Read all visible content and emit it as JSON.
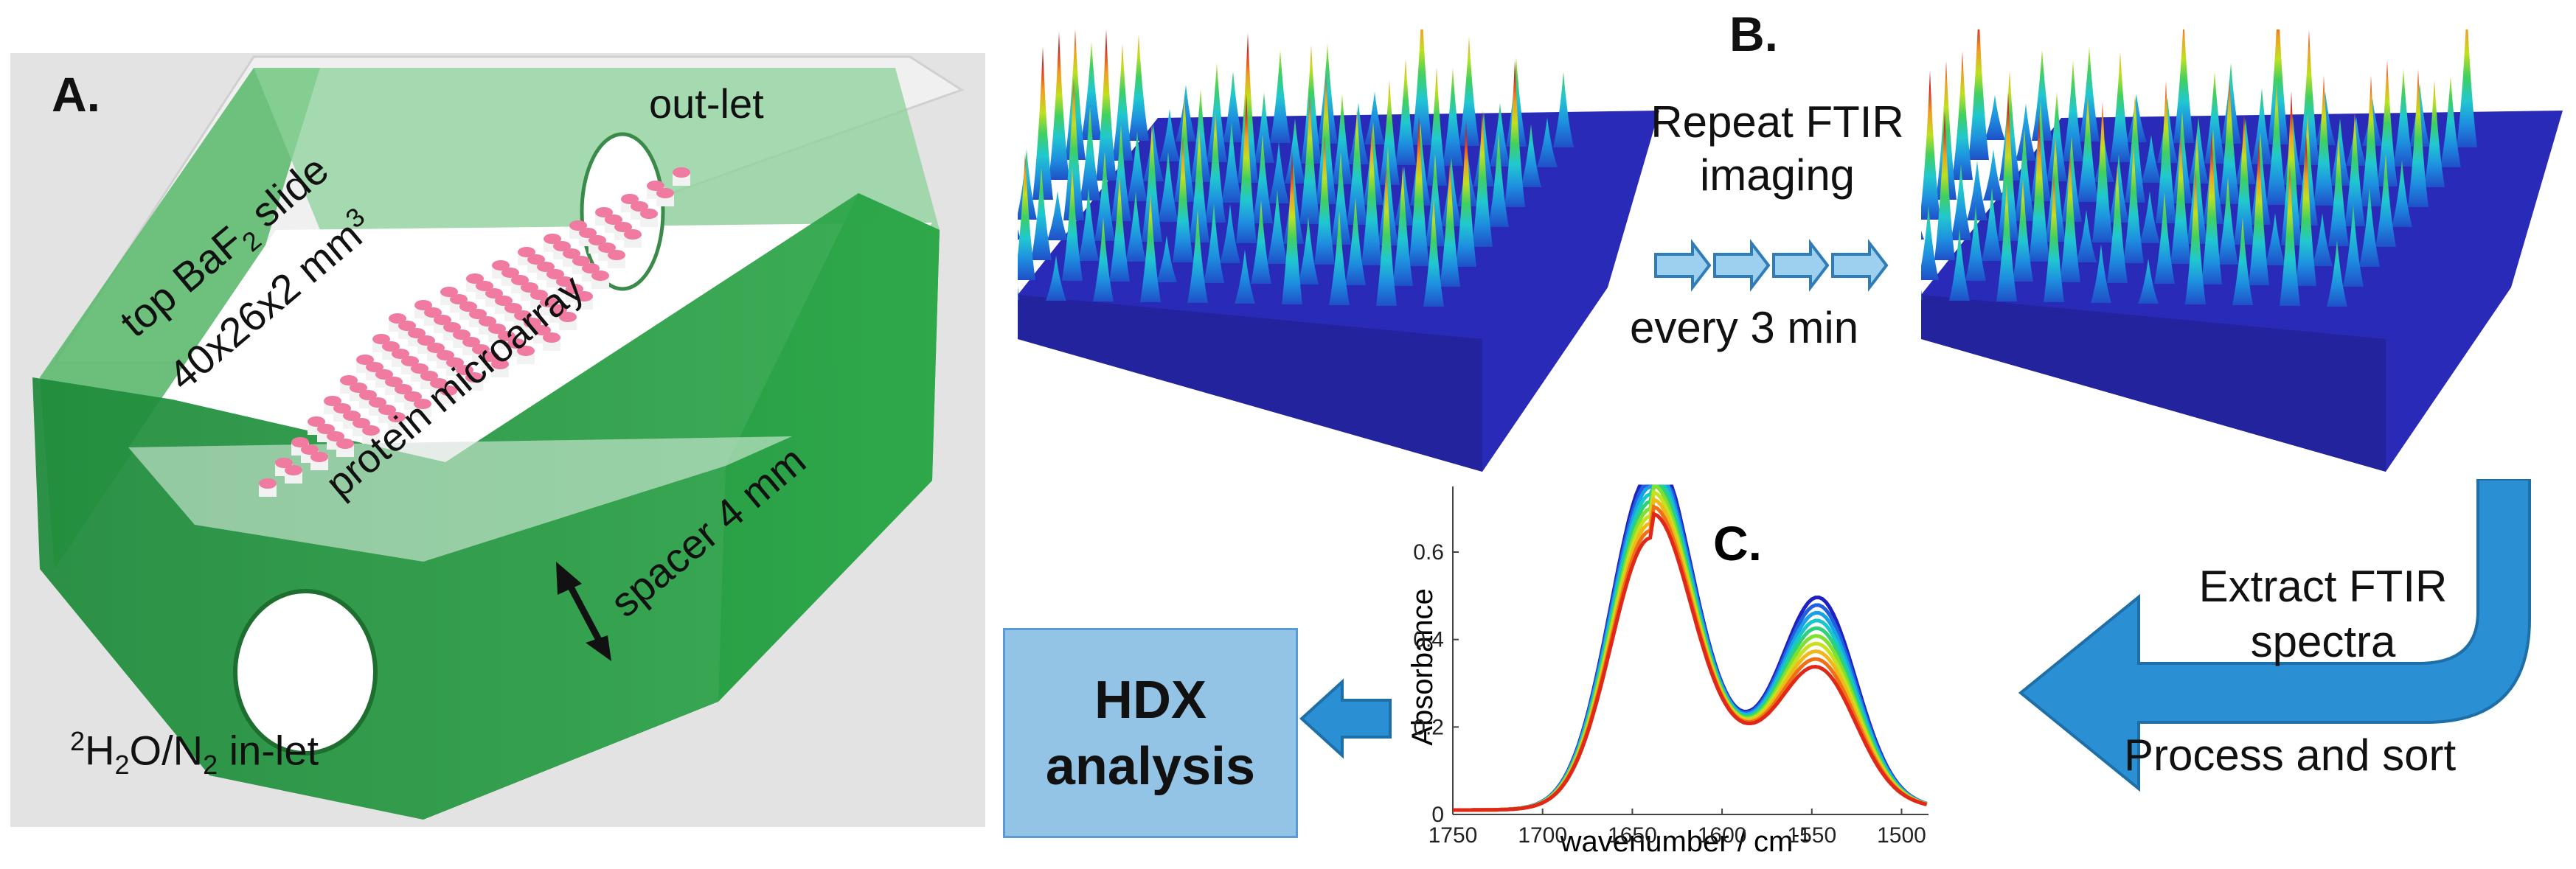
{
  "panel_a": {
    "letter": "A.",
    "outlet_label": "out-let",
    "top_slide_prefix": "top BaF",
    "top_slide_sub": "2",
    "top_slide_suffix": " slide",
    "dims_text": "40x26x2 mm",
    "dims_sup": "3",
    "microarray_label": "protein microarray",
    "spacer_label": "spacer 4 mm",
    "inlet_sup": "2",
    "inlet_mid": "H",
    "inlet_sub1": "2",
    "inlet_mid2": "O/N",
    "inlet_sub2": "2",
    "inlet_suffix": " in-let"
  },
  "panel_b": {
    "letter": "B.",
    "repeat_line1": "Repeat FTIR",
    "repeat_line2": "imaging",
    "interval": "every 3 min"
  },
  "flow": {
    "extract_line1": "Extract FTIR",
    "extract_line2": "spectra",
    "process": "Process and sort"
  },
  "hdx": {
    "line1": "HDX",
    "line2": "analysis"
  },
  "chart_data": {
    "type": "line",
    "panel_letter": "C.",
    "xlabel_prefix": "wavenumber / cm",
    "xlabel_sup": "-1",
    "ylabel": "Absorbance",
    "xlim": [
      1750,
      1485
    ],
    "ylim": [
      0,
      0.75
    ],
    "x_ticks": [
      1750,
      1700,
      1650,
      1600,
      1550,
      1500
    ],
    "y_ticks": [
      0,
      0.2,
      0.4,
      0.6
    ],
    "x_tick_labels": [
      "1750",
      "1700",
      "1650",
      "1600",
      "1550",
      "1500"
    ],
    "y_tick_labels": [
      "0",
      "0.2",
      "0.4",
      "0.6"
    ],
    "series_description": "many overlapping spectra, colour graded blue to red",
    "amide_I_peak_x": 1640,
    "amide_I_peak_range": [
      0.6,
      0.75
    ],
    "amide_II_peak_x": 1545,
    "amide_II_peak_range": [
      0.24,
      0.4
    ],
    "series_colors": [
      "#2020c0",
      "#1f5fe0",
      "#1aa0e6",
      "#18c8c8",
      "#2fd07a",
      "#7fe030",
      "#c8e020",
      "#f0b818",
      "#f07018",
      "#e02818"
    ]
  }
}
